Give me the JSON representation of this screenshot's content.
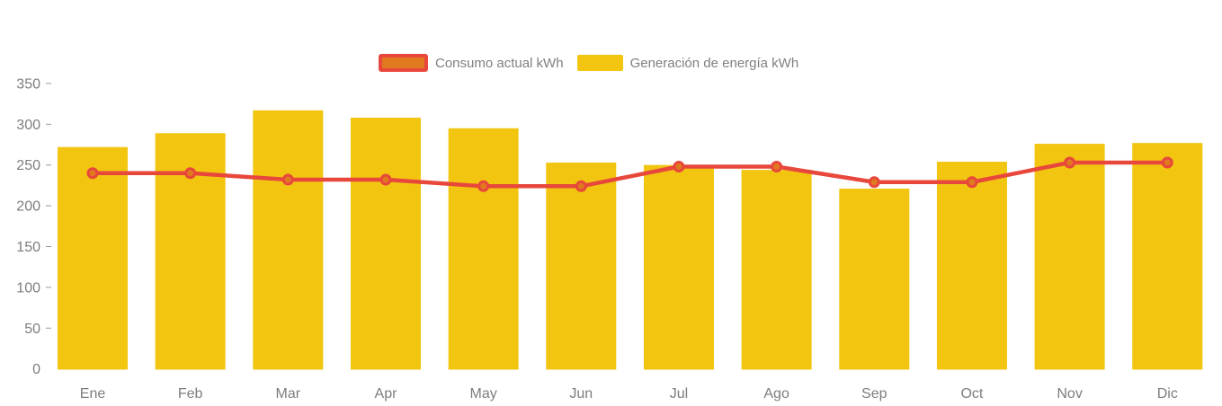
{
  "legend": {
    "items": [
      {
        "label": "Consumo actual kWh",
        "type": "line"
      },
      {
        "label": "Generación de energía kWh",
        "type": "bar"
      }
    ]
  },
  "colors": {
    "bar": "#F2C511",
    "line": "#E8473C",
    "marker_fill": "#E1791E",
    "axis_text": "#7d7d7d",
    "tick_mark": "#999999",
    "background": "#ffffff"
  },
  "chart_data": {
    "type": "bar+line",
    "title": "",
    "xlabel": "",
    "ylabel": "",
    "categories": [
      "Ene",
      "Feb",
      "Mar",
      "Apr",
      "May",
      "Jun",
      "Jul",
      "Ago",
      "Sep",
      "Oct",
      "Nov",
      "Dic"
    ],
    "series": [
      {
        "name": "Consumo actual kWh",
        "type": "line",
        "color": "#E8473C",
        "values": [
          240,
          240,
          232,
          232,
          224,
          224,
          248,
          248,
          229,
          229,
          253,
          253
        ]
      },
      {
        "name": "Generación de energía kWh",
        "type": "bar",
        "color": "#F2C511",
        "values": [
          272,
          289,
          317,
          308,
          295,
          253,
          250,
          244,
          221,
          254,
          276,
          277
        ]
      }
    ],
    "ylim": [
      0,
      350
    ],
    "y_ticks": [
      0,
      50,
      100,
      150,
      200,
      250,
      300,
      350
    ],
    "grid": false,
    "legend_position": "top"
  }
}
